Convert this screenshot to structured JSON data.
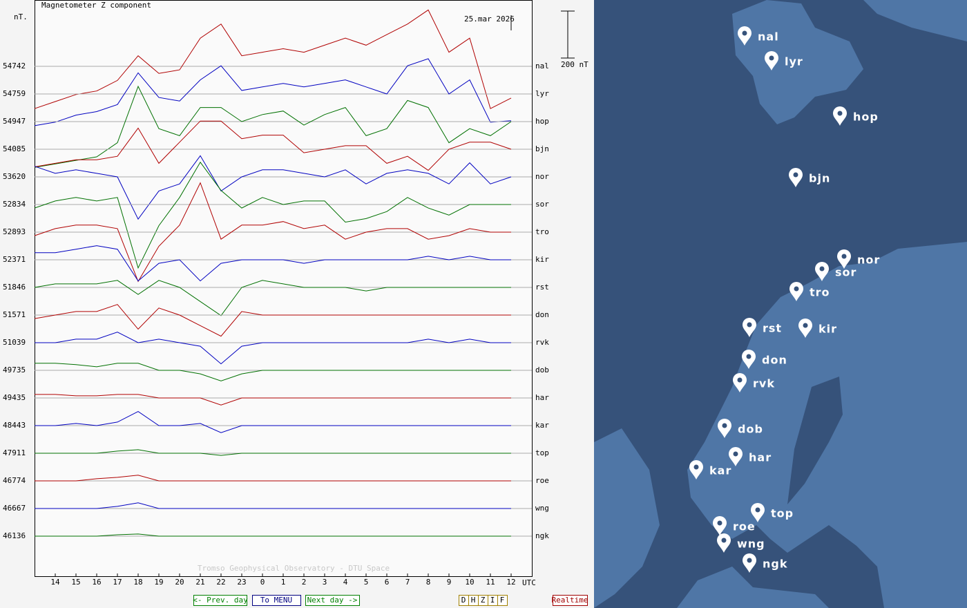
{
  "chart_data": {
    "type": "line",
    "title": "Magnetometer Z component",
    "y_unit": "nT.",
    "date": "25.mar 2026",
    "scale_label": "200 nT",
    "scale_nT": 200,
    "x_unit": "UTC",
    "watermark": "Tromso Geophysical Observatory - DTU Space",
    "xlim": [
      13,
      37
    ],
    "xticks": [
      14,
      15,
      16,
      17,
      18,
      19,
      20,
      21,
      22,
      23,
      {
        "value": 24,
        "label": "0"
      },
      {
        "value": 25,
        "label": "1"
      },
      {
        "value": 26,
        "label": "2"
      },
      {
        "value": 27,
        "label": "3"
      },
      {
        "value": 28,
        "label": "4"
      },
      {
        "value": 29,
        "label": "5"
      },
      {
        "value": 30,
        "label": "6"
      },
      {
        "value": 31,
        "label": "7"
      },
      {
        "value": 32,
        "label": "8"
      },
      {
        "value": 33,
        "label": "9"
      },
      {
        "value": 34,
        "label": "10"
      },
      {
        "value": 35,
        "label": "11"
      },
      {
        "value": 36,
        "label": "12"
      }
    ],
    "x": [
      13,
      14,
      15,
      16,
      17,
      18,
      19,
      20,
      21,
      22,
      23,
      24,
      25,
      26,
      27,
      28,
      29,
      30,
      31,
      32,
      33,
      34,
      35,
      36
    ],
    "series": [
      {
        "name": "nal",
        "baseline": 54742,
        "color": "#b00000",
        "values": [
          -180,
          -150,
          -120,
          -105,
          -60,
          45,
          -30,
          -15,
          120,
          180,
          45,
          60,
          75,
          60,
          90,
          120,
          90,
          135,
          180,
          240,
          60,
          120,
          -180,
          -135
        ]
      },
      {
        "name": "lyr",
        "baseline": 54759,
        "color": "#0000c0",
        "values": [
          -135,
          -120,
          -90,
          -75,
          -45,
          90,
          -15,
          -30,
          60,
          120,
          15,
          30,
          45,
          30,
          45,
          60,
          30,
          0,
          120,
          150,
          0,
          60,
          -120,
          -114
        ]
      },
      {
        "name": "hop",
        "baseline": 54947,
        "color": "#007000",
        "values": [
          -195,
          -180,
          -165,
          -150,
          -90,
          150,
          -30,
          -60,
          60,
          60,
          0,
          30,
          45,
          -15,
          30,
          60,
          -60,
          -30,
          90,
          60,
          -90,
          -30,
          -60,
          0
        ]
      },
      {
        "name": "bjn",
        "baseline": 54085,
        "color": "#b00000",
        "values": [
          -75,
          -60,
          -45,
          -45,
          -30,
          90,
          -60,
          30,
          120,
          120,
          45,
          60,
          60,
          -15,
          0,
          15,
          15,
          -60,
          -30,
          -90,
          0,
          30,
          30,
          0
        ]
      },
      {
        "name": "nor",
        "baseline": 53620,
        "color": "#0000c0",
        "values": [
          45,
          15,
          30,
          15,
          0,
          -180,
          -60,
          -30,
          90,
          -60,
          0,
          30,
          30,
          15,
          0,
          30,
          -30,
          15,
          30,
          15,
          -30,
          60,
          -30,
          0
        ]
      },
      {
        "name": "sor",
        "baseline": 52834,
        "color": "#007000",
        "values": [
          -15,
          15,
          30,
          15,
          30,
          -270,
          -90,
          30,
          180,
          60,
          -15,
          30,
          0,
          15,
          15,
          -75,
          -60,
          -30,
          30,
          -15,
          -45,
          0,
          0,
          0
        ]
      },
      {
        "name": "tro",
        "baseline": 52893,
        "color": "#b00000",
        "values": [
          -15,
          15,
          30,
          30,
          15,
          -210,
          -60,
          30,
          210,
          -30,
          30,
          30,
          45,
          15,
          30,
          -30,
          0,
          15,
          15,
          -30,
          -15,
          15,
          0,
          0
        ]
      },
      {
        "name": "kir",
        "baseline": 52371,
        "color": "#0000c0",
        "values": [
          30,
          30,
          45,
          60,
          45,
          -90,
          -15,
          0,
          -90,
          -15,
          0,
          0,
          0,
          -15,
          0,
          0,
          0,
          0,
          0,
          15,
          0,
          15,
          0,
          0
        ]
      },
      {
        "name": "rst",
        "baseline": 51846,
        "color": "#007000",
        "values": [
          0,
          15,
          15,
          15,
          30,
          -30,
          30,
          0,
          -60,
          -120,
          0,
          30,
          15,
          0,
          0,
          0,
          -15,
          0,
          0,
          0,
          0,
          0,
          0,
          0
        ]
      },
      {
        "name": "don",
        "baseline": 51571,
        "color": "#b00000",
        "values": [
          -15,
          0,
          15,
          15,
          45,
          -60,
          30,
          0,
          -45,
          -90,
          15,
          0,
          0,
          0,
          0,
          0,
          0,
          0,
          0,
          0,
          0,
          0,
          0,
          0
        ]
      },
      {
        "name": "rvk",
        "baseline": 51039,
        "color": "#0000c0",
        "values": [
          0,
          0,
          15,
          15,
          45,
          0,
          15,
          0,
          -15,
          -90,
          -15,
          0,
          0,
          0,
          0,
          0,
          0,
          0,
          0,
          15,
          0,
          15,
          0,
          0
        ]
      },
      {
        "name": "dob",
        "baseline": 49735,
        "color": "#007000",
        "values": [
          30,
          30,
          24,
          15,
          30,
          30,
          0,
          0,
          -15,
          -45,
          -15,
          0,
          0,
          0,
          0,
          0,
          0,
          0,
          0,
          0,
          0,
          0,
          0,
          0
        ]
      },
      {
        "name": "har",
        "baseline": 49435,
        "color": "#b00000",
        "values": [
          15,
          15,
          9,
          9,
          15,
          15,
          0,
          0,
          0,
          -30,
          0,
          0,
          0,
          0,
          0,
          0,
          0,
          0,
          0,
          0,
          0,
          0,
          0,
          0
        ]
      },
      {
        "name": "kar",
        "baseline": 48443,
        "color": "#0000c0",
        "values": [
          0,
          0,
          9,
          0,
          15,
          60,
          0,
          0,
          9,
          -30,
          0,
          0,
          0,
          0,
          0,
          0,
          0,
          0,
          0,
          0,
          0,
          0,
          0,
          0
        ]
      },
      {
        "name": "top",
        "baseline": 47911,
        "color": "#007000",
        "values": [
          0,
          0,
          0,
          0,
          9,
          15,
          0,
          0,
          0,
          -9,
          0,
          0,
          0,
          0,
          0,
          0,
          0,
          0,
          0,
          0,
          0,
          0,
          0,
          0
        ]
      },
      {
        "name": "roe",
        "baseline": 46774,
        "color": "#b00000",
        "values": [
          0,
          0,
          0,
          9,
          15,
          24,
          0,
          0,
          0,
          0,
          0,
          0,
          0,
          0,
          0,
          0,
          0,
          0,
          0,
          0,
          0,
          0,
          0,
          0
        ]
      },
      {
        "name": "wng",
        "baseline": 46667,
        "color": "#0000c0",
        "values": [
          0,
          0,
          0,
          0,
          9,
          24,
          0,
          0,
          0,
          0,
          0,
          0,
          0,
          0,
          0,
          0,
          0,
          0,
          0,
          0,
          0,
          0,
          0,
          0
        ]
      },
      {
        "name": "ngk",
        "baseline": 46136,
        "color": "#007000",
        "values": [
          0,
          0,
          0,
          0,
          6,
          9,
          0,
          0,
          0,
          0,
          0,
          0,
          0,
          0,
          0,
          0,
          0,
          0,
          0,
          0,
          0,
          0,
          0,
          0
        ]
      }
    ]
  },
  "nav": {
    "prev": "<- Prev. day",
    "menu": "To MENU",
    "next": "Next day ->",
    "components": [
      "D",
      "H",
      "Z",
      "I",
      "F"
    ],
    "realtime": "Realtime"
  },
  "map": {
    "labels": [
      "nal",
      "lyr",
      "hop",
      "bjn",
      "nor",
      "sor",
      "tro",
      "kir",
      "rst",
      "don",
      "rvk",
      "dob",
      "har",
      "kar",
      "top",
      "roe",
      "wng",
      "ngk"
    ]
  }
}
